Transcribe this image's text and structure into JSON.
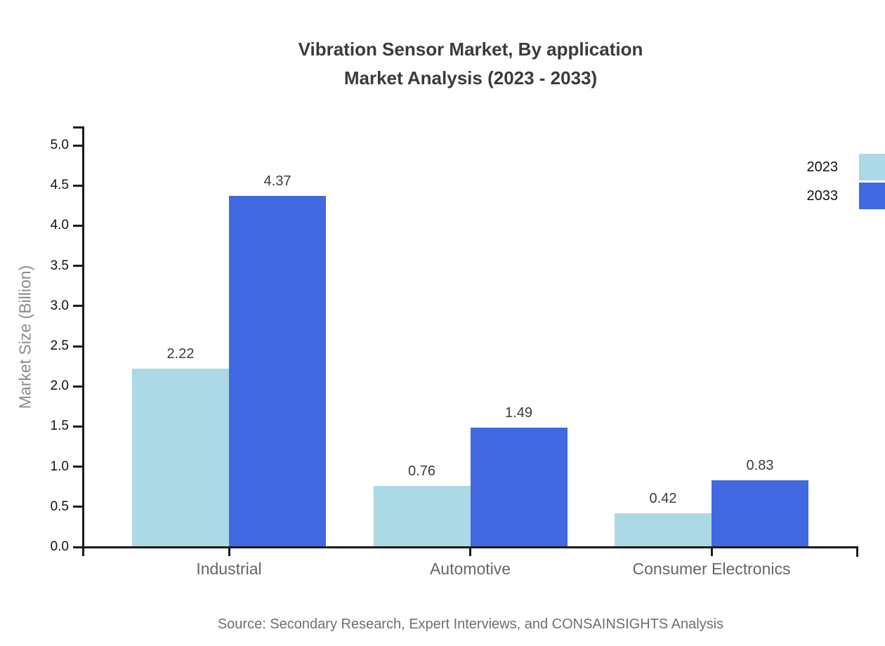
{
  "title": {
    "line1": "Vibration Sensor Market, By application",
    "line2": "Market Analysis (2023 - 2033)"
  },
  "source": "Source: Secondary Research, Expert Interviews, and CONSAINSIGHTS Analysis",
  "chart_data": {
    "type": "bar",
    "categories": [
      "Industrial",
      "Automotive",
      "Consumer Electronics"
    ],
    "series": [
      {
        "name": "2023",
        "color": "#ADD8E6",
        "values": [
          2.22,
          0.76,
          0.42
        ]
      },
      {
        "name": "2033",
        "color": "#4169E1",
        "values": [
          4.37,
          1.49,
          0.83
        ]
      }
    ],
    "title": "Vibration Sensor Market, By application Market Analysis (2023 - 2033)",
    "xlabel": "",
    "ylabel": "Market Size (Billion)",
    "ylim": [
      0.0,
      5.0
    ],
    "ytick_step": 0.5,
    "grid": false,
    "legend_position": "top-right",
    "value_labels": true,
    "axis_color": "#1a1a1a"
  }
}
